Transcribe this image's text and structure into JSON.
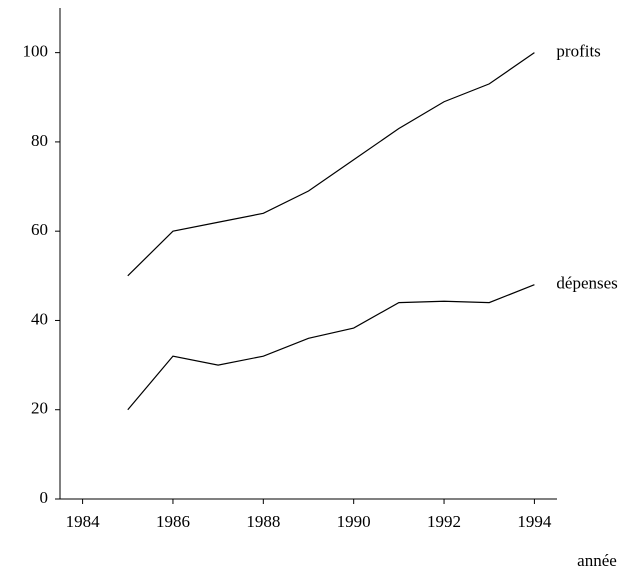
{
  "chart_data": {
    "type": "line",
    "x_label": "année",
    "x": [
      1985,
      1986,
      1987,
      1988,
      1989,
      1990,
      1991,
      1992,
      1993,
      1994
    ],
    "series": [
      {
        "name": "profits",
        "color": "#000000",
        "values": [
          50,
          60,
          62,
          64,
          69,
          76,
          83,
          89,
          93,
          100
        ]
      },
      {
        "name": "dépenses",
        "color": "#000000",
        "values": [
          20,
          32,
          30,
          32,
          36,
          38.3,
          44,
          44.3,
          44,
          48
        ]
      }
    ],
    "xlim": [
      1983.5,
      1994.5
    ],
    "xticks": [
      1984,
      1986,
      1988,
      1990,
      1992,
      1994
    ],
    "ylim": [
      0,
      110
    ],
    "yticks": [
      0,
      20,
      40,
      60,
      80,
      100
    ],
    "grid": false
  }
}
